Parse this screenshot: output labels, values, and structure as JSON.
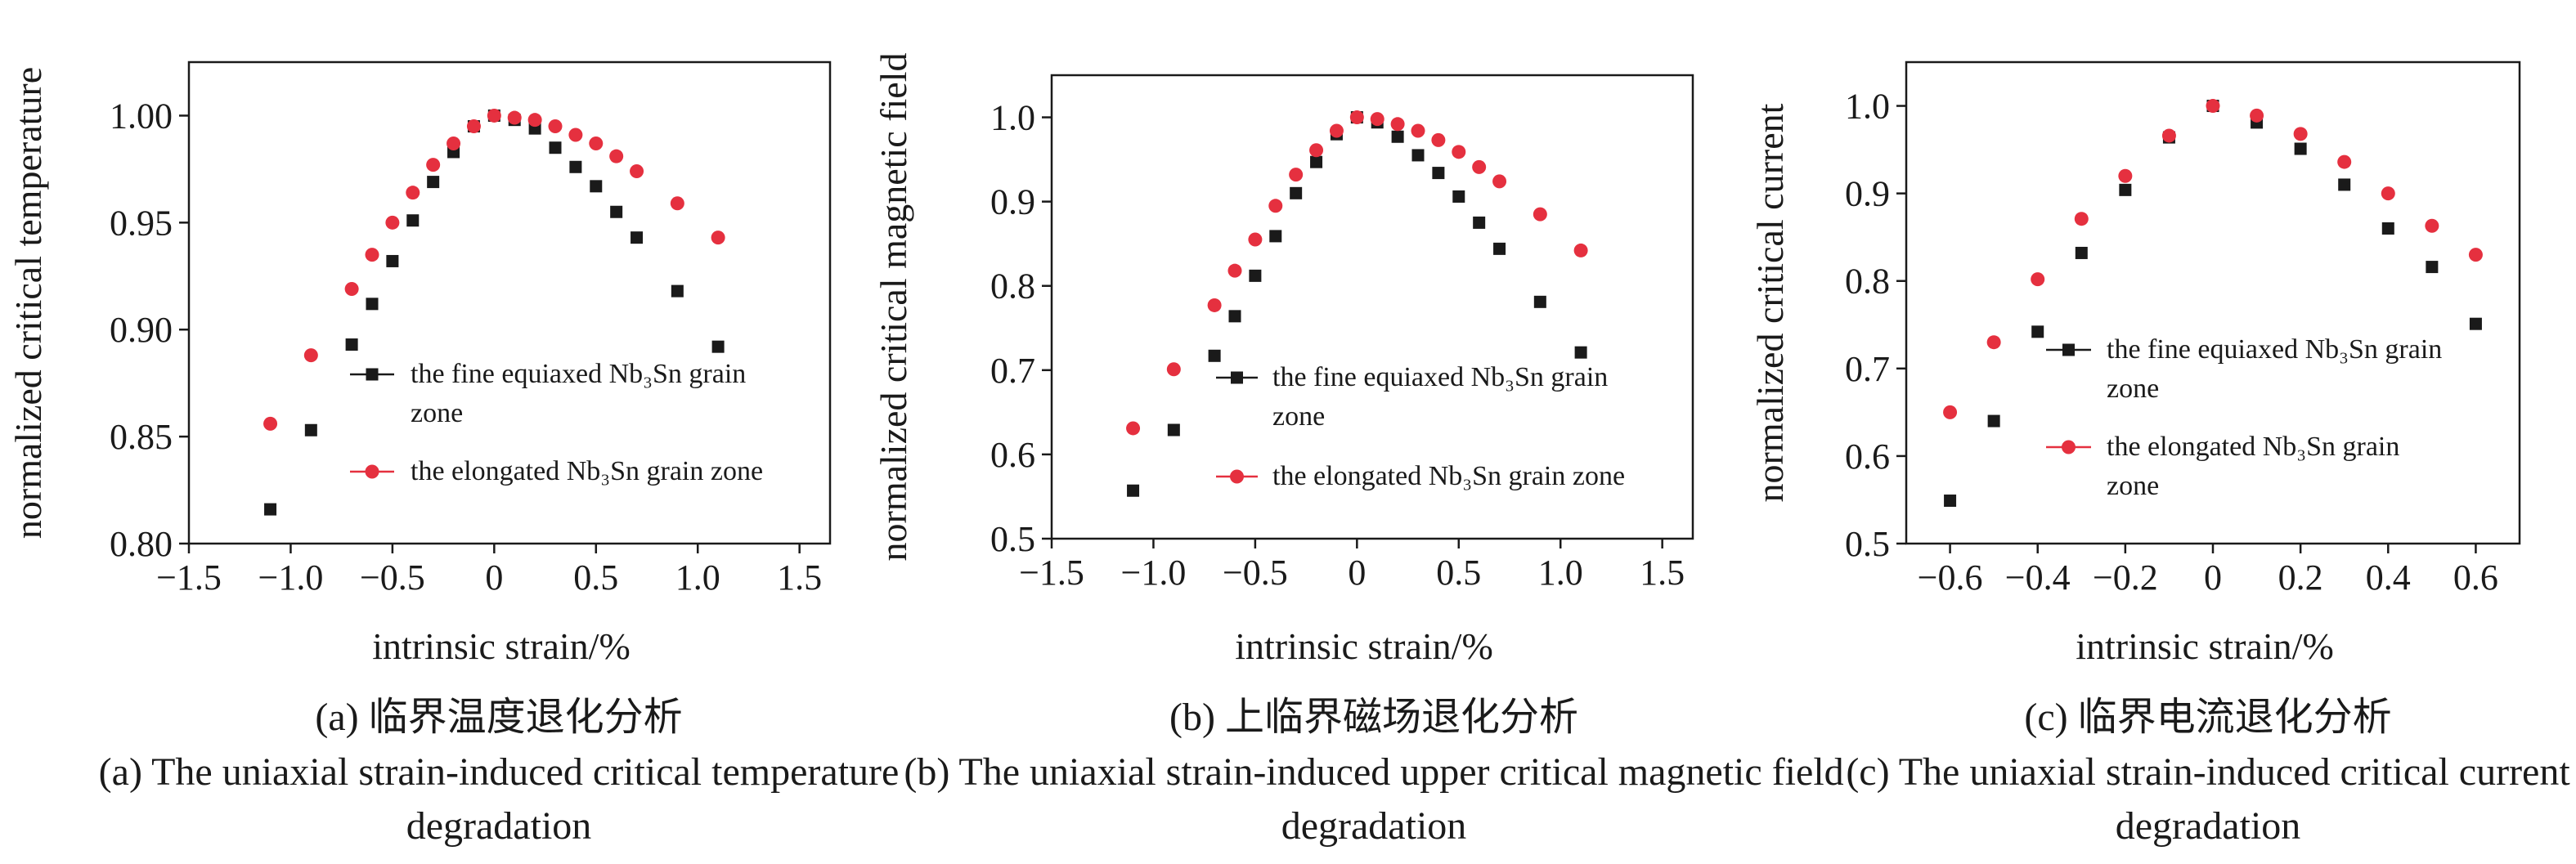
{
  "chart_data": [
    {
      "type": "line",
      "title": "(a) 临界温度退化分析",
      "subtitle": "(a) The uniaxial strain-induced critical temperature degradation",
      "xlabel": "intrinsic strain/%",
      "ylabel": "normalized critical temperature",
      "xlim": [
        -1.5,
        1.65
      ],
      "ylim": [
        0.8,
        1.025
      ],
      "xticks": [
        {
          "value": -1.5,
          "label": "−1.5"
        },
        {
          "value": -1.0,
          "label": "−1.0"
        },
        {
          "value": -0.5,
          "label": "−0.5"
        },
        0,
        0.5,
        {
          "value": 1.0,
          "label": "1.0"
        },
        1.5
      ],
      "yticks": [
        {
          "value": 0.8,
          "label": "0.80"
        },
        0.85,
        {
          "value": 0.9,
          "label": "0.90"
        },
        0.95,
        {
          "value": 1.0,
          "label": "1.00"
        }
      ],
      "x": [
        -1.1,
        -0.9,
        -0.7,
        -0.6,
        -0.5,
        -0.4,
        -0.3,
        -0.2,
        -0.1,
        0,
        0.1,
        0.2,
        0.3,
        0.4,
        0.5,
        0.6,
        0.7,
        0.9,
        1.1
      ],
      "series": [
        {
          "name": "the fine equiaxed Nb₃Sn grain zone",
          "color": "#1a1a1a",
          "marker": "square",
          "values": [
            0.816,
            0.853,
            0.893,
            0.912,
            0.932,
            0.951,
            0.969,
            0.983,
            0.995,
            1.0,
            0.998,
            0.994,
            0.985,
            0.976,
            0.967,
            0.955,
            0.943,
            0.918,
            0.892
          ]
        },
        {
          "name": "the elongated Nb₃Sn grain zone",
          "color": "#e5303f",
          "marker": "circle",
          "values": [
            0.856,
            0.888,
            0.919,
            0.935,
            0.95,
            0.964,
            0.977,
            0.987,
            0.995,
            1.0,
            0.999,
            0.998,
            0.995,
            0.991,
            0.987,
            0.981,
            0.974,
            0.959,
            0.943
          ]
        }
      ]
    },
    {
      "type": "line",
      "title": "(b) 上临界磁场退化分析",
      "subtitle": "(b) The uniaxial strain-induced upper critical magnetic field degradation",
      "xlabel": "intrinsic strain/%",
      "ylabel": "normalized critical magnetic field",
      "xlim": [
        -1.5,
        1.65
      ],
      "ylim": [
        0.5,
        1.05
      ],
      "xticks": [
        {
          "value": -1.5,
          "label": "−1.5"
        },
        {
          "value": -1.0,
          "label": "−1.0"
        },
        {
          "value": -0.5,
          "label": "−0.5"
        },
        0,
        0.5,
        {
          "value": 1.0,
          "label": "1.0"
        },
        1.5
      ],
      "yticks": [
        0.5,
        0.6,
        0.7,
        0.8,
        0.9,
        {
          "value": 1.0,
          "label": "1.0"
        }
      ],
      "x": [
        -1.1,
        -0.9,
        -0.7,
        -0.6,
        -0.5,
        -0.4,
        -0.3,
        -0.2,
        -0.1,
        0,
        0.1,
        0.2,
        0.3,
        0.4,
        0.5,
        0.6,
        0.7,
        0.9,
        1.1
      ],
      "series": [
        {
          "name": "the fine equiaxed Nb₃Sn grain zone",
          "color": "#1a1a1a",
          "marker": "square",
          "values": [
            0.557,
            0.629,
            0.717,
            0.764,
            0.812,
            0.859,
            0.91,
            0.947,
            0.98,
            1.0,
            0.994,
            0.977,
            0.955,
            0.934,
            0.906,
            0.875,
            0.844,
            0.781,
            0.721
          ]
        },
        {
          "name": "the elongated Nb₃Sn grain zone",
          "color": "#e5303f",
          "marker": "circle",
          "values": [
            0.631,
            0.701,
            0.777,
            0.818,
            0.855,
            0.895,
            0.932,
            0.961,
            0.984,
            1.0,
            0.998,
            0.992,
            0.984,
            0.973,
            0.959,
            0.941,
            0.924,
            0.885,
            0.842
          ]
        }
      ]
    },
    {
      "type": "line",
      "title": "(c) 临界电流退化分析",
      "subtitle": "(c) The uniaxial strain-induced critical current degradation",
      "xlabel": "intrinsic strain/%",
      "ylabel": "normalized critical current",
      "xlim": [
        -0.7,
        0.7
      ],
      "ylim": [
        0.5,
        1.05
      ],
      "xticks": [
        {
          "value": -0.6,
          "label": "−0.6"
        },
        {
          "value": -0.4,
          "label": "−0.4"
        },
        {
          "value": -0.2,
          "label": "−0.2"
        },
        0,
        0.2,
        0.4,
        0.6
      ],
      "yticks": [
        0.5,
        0.6,
        0.7,
        0.8,
        0.9,
        {
          "value": 1.0,
          "label": "1.0"
        }
      ],
      "x": [
        -0.6,
        -0.5,
        -0.4,
        -0.3,
        -0.2,
        -0.1,
        0,
        0.1,
        0.2,
        0.3,
        0.4,
        0.5,
        0.6
      ],
      "series": [
        {
          "name": "the fine equiaxed Nb₃Sn grain zone",
          "color": "#1a1a1a",
          "marker": "square",
          "values": [
            0.549,
            0.64,
            0.742,
            0.832,
            0.904,
            0.964,
            1.0,
            0.981,
            0.951,
            0.91,
            0.86,
            0.816,
            0.751
          ]
        },
        {
          "name": "the elongated Nb₃Sn grain zone",
          "color": "#e5303f",
          "marker": "circle",
          "values": [
            0.65,
            0.73,
            0.802,
            0.871,
            0.92,
            0.966,
            1.0,
            0.989,
            0.968,
            0.936,
            0.9,
            0.863,
            0.83
          ]
        }
      ]
    }
  ]
}
